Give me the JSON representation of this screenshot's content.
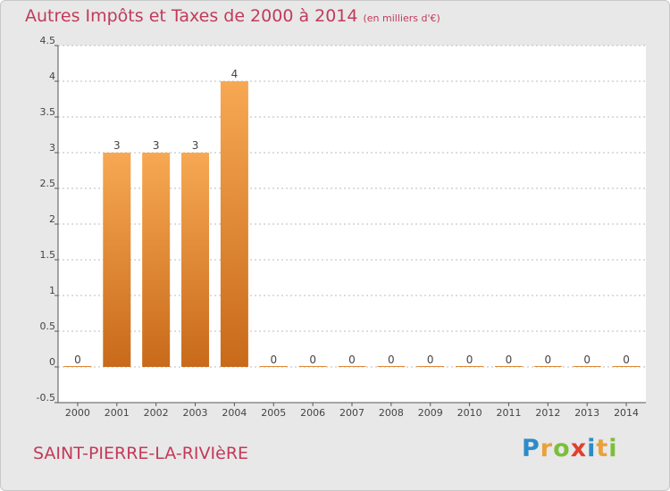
{
  "title": "Autres Impôts et Taxes de 2000 à 2014",
  "subtitle": "(en milliers d'€)",
  "place": "SAINT-PIERRE-LA-RIVIèRE",
  "logo": {
    "letters": [
      "P",
      "r",
      "o",
      "x",
      "i",
      "t",
      "i"
    ],
    "colors": [
      "#2e8bc9",
      "#e8a23a",
      "#7bbf3a",
      "#e0402f",
      "#2e8bc9",
      "#e8a23a",
      "#7bbf3a"
    ]
  },
  "colors": {
    "bar_top": "#f7a852",
    "bar_bottom": "#c86a1a",
    "axis": "#555555",
    "grid": "#bbbbbb",
    "title": "#c23a5a"
  },
  "chart_data": {
    "type": "bar",
    "categories": [
      "2000",
      "2001",
      "2002",
      "2003",
      "2004",
      "2005",
      "2006",
      "2007",
      "2008",
      "2009",
      "2010",
      "2011",
      "2012",
      "2013",
      "2014"
    ],
    "values": [
      0,
      3,
      3,
      3,
      4,
      0,
      0,
      0,
      0,
      0,
      0,
      0,
      0,
      0,
      0
    ],
    "data_labels": [
      "0",
      "3",
      "3",
      "3",
      "4",
      "0",
      "0",
      "0",
      "0",
      "0",
      "0",
      "0",
      "0",
      "0",
      "0"
    ],
    "yticks": [
      "4.5",
      "4",
      "3.5",
      "3",
      "2.5",
      "2",
      "1.5",
      "1",
      "0.5",
      "0",
      "-0.5"
    ],
    "ylim": [
      -0.5,
      4.5
    ],
    "grid": "y-dashed"
  }
}
